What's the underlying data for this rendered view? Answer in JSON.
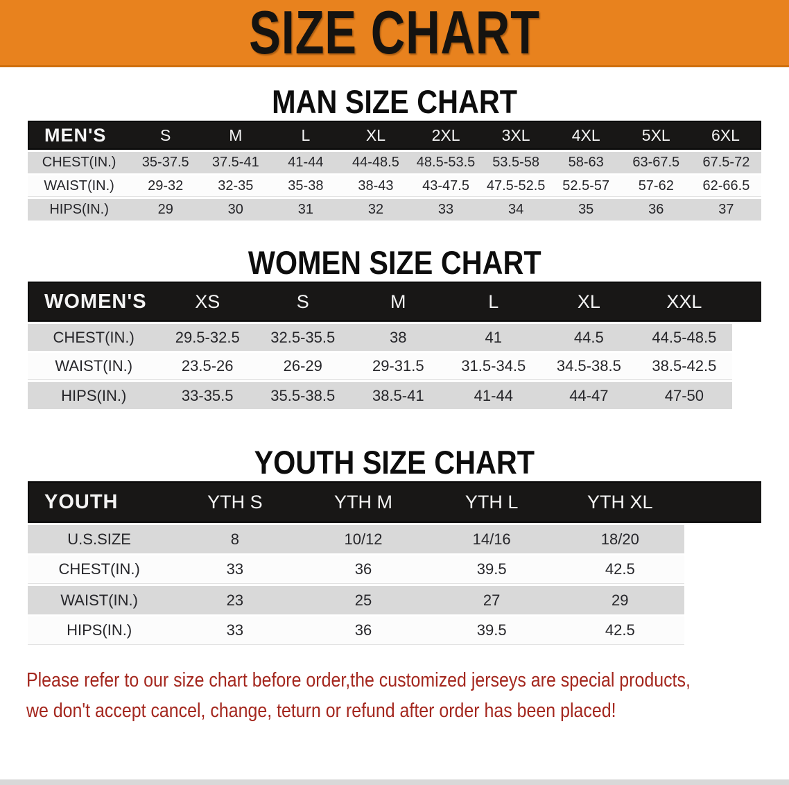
{
  "banner": {
    "title": "SIZE CHART"
  },
  "sections": [
    {
      "title": "MAN SIZE CHART",
      "header_label": "MEN'S",
      "columns": [
        "S",
        "M",
        "L",
        "XL",
        "2XL",
        "3XL",
        "4XL",
        "5XL",
        "6XL"
      ],
      "rows": [
        {
          "label": "CHEST(IN.)",
          "values": [
            "35-37.5",
            "37.5-41",
            "41-44",
            "44-48.5",
            "48.5-53.5",
            "53.5-58",
            "58-63",
            "63-67.5",
            "67.5-72"
          ]
        },
        {
          "label": "WAIST(IN.)",
          "values": [
            "29-32",
            "32-35",
            "35-38",
            "38-43",
            "43-47.5",
            "47.5-52.5",
            "52.5-57",
            "57-62",
            "62-66.5"
          ]
        },
        {
          "label": "HIPS(IN.)",
          "values": [
            "29",
            "30",
            "31",
            "32",
            "33",
            "34",
            "35",
            "36",
            "37"
          ]
        }
      ]
    },
    {
      "title": "WOMEN SIZE CHART",
      "header_label": "WOMEN'S",
      "columns": [
        "XS",
        "S",
        "M",
        "L",
        "XL",
        "XXL"
      ],
      "rows": [
        {
          "label": "CHEST(IN.)",
          "values": [
            "29.5-32.5",
            "32.5-35.5",
            "38",
            "41",
            "44.5",
            "44.5-48.5"
          ]
        },
        {
          "label": "WAIST(IN.)",
          "values": [
            "23.5-26",
            "26-29",
            "29-31.5",
            "31.5-34.5",
            "34.5-38.5",
            "38.5-42.5"
          ]
        },
        {
          "label": "HIPS(IN.)",
          "values": [
            "33-35.5",
            "35.5-38.5",
            "38.5-41",
            "41-44",
            "44-47",
            "47-50"
          ]
        }
      ]
    },
    {
      "title": "YOUTH SIZE CHART",
      "header_label": "YOUTH",
      "columns": [
        "YTH S",
        "YTH M",
        "YTH L",
        "YTH XL"
      ],
      "rows": [
        {
          "label": "U.S.SIZE",
          "values": [
            "8",
            "10/12",
            "14/16",
            "18/20"
          ]
        },
        {
          "label": "CHEST(IN.)",
          "values": [
            "33",
            "36",
            "39.5",
            "42.5"
          ]
        },
        {
          "label": "WAIST(IN.)",
          "values": [
            "23",
            "25",
            "27",
            "29"
          ]
        },
        {
          "label": "HIPS(IN.)",
          "values": [
            "33",
            "36",
            "39.5",
            "42.5"
          ]
        }
      ]
    }
  ],
  "disclaimer": {
    "line1": "Please refer to our size chart before order,the customized jerseys are special products,",
    "line2": "we don't accept cancel, change, teturn or refund after order has been placed!"
  },
  "colors": {
    "banner_bg": "#E8821E",
    "header_bar": "#181716",
    "row_gray": "#D9D9D9",
    "row_white": "#FCFCFC",
    "disclaimer_red": "#A4271E"
  }
}
